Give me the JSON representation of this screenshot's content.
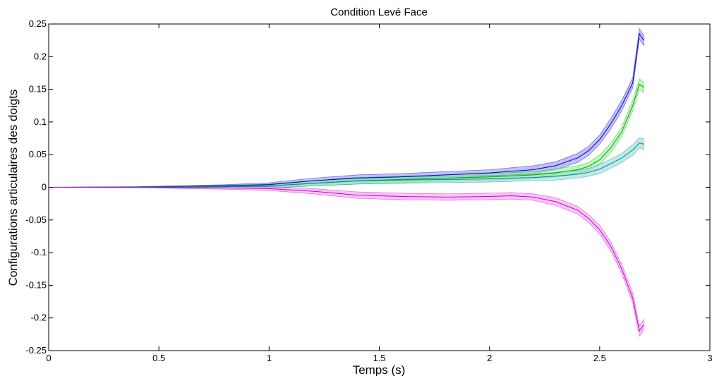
{
  "chart_data": {
    "type": "line",
    "title": "Condition Levé Face",
    "xlabel": "Temps (s)",
    "ylabel": "Configurations articulaires des doigts",
    "xlim": [
      0,
      3
    ],
    "ylim": [
      -0.25,
      0.25
    ],
    "x_ticks": [
      0,
      0.5,
      1,
      1.5,
      2,
      2.5,
      3
    ],
    "x_tick_labels": [
      "0",
      "0.5",
      "1",
      "1.5",
      "2",
      "2.5",
      "3"
    ],
    "y_ticks": [
      0.25,
      0.2,
      0.15,
      0.1,
      0.05,
      0,
      -0.05,
      -0.1,
      -0.15,
      -0.2,
      -0.25
    ],
    "y_tick_labels": [
      "0.25",
      "0.2",
      "0.15",
      "0.1",
      "0.05",
      "0",
      "-0.05",
      "-0.1",
      "-0.15",
      "-0.2",
      "-0.25"
    ],
    "grid": false,
    "legend": "none",
    "series": [
      {
        "color": "#0000cc",
        "band_color": "#8c8cee",
        "x": [
          0,
          0.4,
          0.8,
          1.0,
          1.2,
          1.4,
          1.6,
          1.8,
          2.0,
          2.2,
          2.3,
          2.4,
          2.45,
          2.5,
          2.55,
          2.6,
          2.65,
          2.68,
          2.7
        ],
        "y": [
          0,
          0.0005,
          0.002,
          0.004,
          0.01,
          0.014,
          0.016,
          0.019,
          0.022,
          0.027,
          0.033,
          0.045,
          0.056,
          0.073,
          0.097,
          0.125,
          0.16,
          0.235,
          0.225
        ],
        "band": [
          0,
          0.0005,
          0.002,
          0.003,
          0.004,
          0.005,
          0.005,
          0.005,
          0.005,
          0.006,
          0.006,
          0.007,
          0.007,
          0.007,
          0.008,
          0.008,
          0.008,
          0.008,
          0.008
        ]
      },
      {
        "color": "#00aa00",
        "band_color": "#8ff08f",
        "x": [
          0,
          0.4,
          0.8,
          1.0,
          1.2,
          1.4,
          1.6,
          1.8,
          2.0,
          2.2,
          2.3,
          2.4,
          2.45,
          2.5,
          2.55,
          2.6,
          2.65,
          2.68,
          2.7
        ],
        "y": [
          0,
          0.0003,
          0.001,
          0.002,
          0.006,
          0.01,
          0.012,
          0.014,
          0.016,
          0.019,
          0.022,
          0.027,
          0.032,
          0.042,
          0.06,
          0.085,
          0.125,
          0.158,
          0.153
        ],
        "band": [
          0,
          0.0005,
          0.002,
          0.003,
          0.004,
          0.005,
          0.005,
          0.005,
          0.005,
          0.005,
          0.006,
          0.006,
          0.006,
          0.007,
          0.007,
          0.007,
          0.008,
          0.008,
          0.008
        ]
      },
      {
        "color": "#008b8b",
        "band_color": "#8fd6d6",
        "x": [
          0,
          0.4,
          0.8,
          1.0,
          1.2,
          1.4,
          1.6,
          1.8,
          2.0,
          2.2,
          2.3,
          2.4,
          2.45,
          2.5,
          2.55,
          2.6,
          2.65,
          2.68,
          2.7
        ],
        "y": [
          0,
          0.0003,
          0.001,
          0.002,
          0.006,
          0.01,
          0.011,
          0.012,
          0.013,
          0.015,
          0.017,
          0.02,
          0.023,
          0.028,
          0.036,
          0.045,
          0.057,
          0.068,
          0.066
        ],
        "band": [
          0,
          0.0005,
          0.002,
          0.003,
          0.004,
          0.005,
          0.005,
          0.005,
          0.005,
          0.005,
          0.006,
          0.006,
          0.006,
          0.007,
          0.007,
          0.007,
          0.008,
          0.008,
          0.008
        ]
      },
      {
        "color": "#cc00cc",
        "band_color": "#f096f0",
        "x": [
          0,
          0.4,
          0.8,
          1.0,
          1.2,
          1.4,
          1.6,
          1.8,
          2.0,
          2.1,
          2.2,
          2.3,
          2.4,
          2.45,
          2.5,
          2.55,
          2.6,
          2.65,
          2.68,
          2.7
        ],
        "y": [
          0,
          -0.0002,
          -0.001,
          -0.002,
          -0.006,
          -0.012,
          -0.014,
          -0.015,
          -0.014,
          -0.013,
          -0.015,
          -0.022,
          -0.035,
          -0.048,
          -0.065,
          -0.09,
          -0.125,
          -0.17,
          -0.22,
          -0.21
        ],
        "band": [
          0,
          0.0005,
          0.002,
          0.003,
          0.004,
          0.005,
          0.005,
          0.005,
          0.005,
          0.005,
          0.005,
          0.006,
          0.006,
          0.006,
          0.007,
          0.007,
          0.007,
          0.008,
          0.008,
          0.008
        ]
      }
    ]
  }
}
